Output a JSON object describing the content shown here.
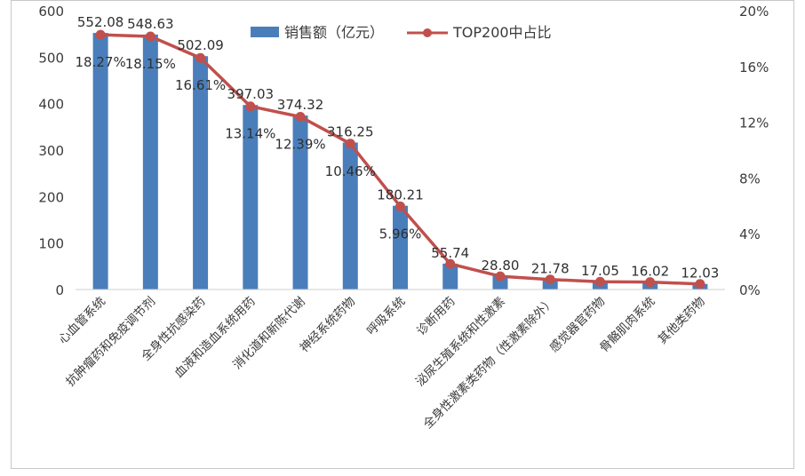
{
  "chart_data": {
    "type": "bar",
    "title": "",
    "xlabel": "",
    "ylabel": "",
    "ylim": [
      0,
      600
    ],
    "y2lim": [
      0,
      20
    ],
    "yticks": [
      "0",
      "100",
      "200",
      "300",
      "400",
      "500",
      "600"
    ],
    "y2ticks": [
      "0%",
      "4%",
      "8%",
      "12%",
      "16%",
      "20%"
    ],
    "grid": false,
    "legend_position": "top",
    "categories": [
      "心血管系统",
      "抗肿瘤药和免疫调节剂",
      "全身性抗感染药",
      "血液和造血系统用药",
      "消化道和新陈代谢",
      "神经系统药物",
      "呼吸系统",
      "诊断用药",
      "泌尿生殖系统和性激素",
      "全身性激素类药物（性激素除外）",
      "感觉器官药物",
      "骨骼肌肉系统",
      "其他类药物"
    ],
    "series": [
      {
        "name": "销售额（亿元）",
        "type": "bar",
        "axis": "left",
        "color": "#4a7ebb",
        "values": [
          552.08,
          548.63,
          502.09,
          397.03,
          374.32,
          316.25,
          180.21,
          55.74,
          28.8,
          21.78,
          17.05,
          16.02,
          12.03
        ],
        "labels": [
          "552.08",
          "548.63",
          "502.09",
          "397.03",
          "374.32",
          "316.25",
          "180.21",
          "55.74",
          "28.80",
          "21.78",
          "17.05",
          "16.02",
          "12.03"
        ]
      },
      {
        "name": "TOP200中占比",
        "type": "line",
        "axis": "right",
        "color": "#c0504d",
        "values": [
          18.27,
          18.15,
          16.61,
          13.14,
          12.39,
          10.46,
          5.96,
          1.84,
          0.95,
          0.72,
          0.56,
          0.53,
          0.4
        ],
        "labels": [
          "18.27%",
          "18.15%",
          "16.61%",
          "13.14%",
          "12.39%",
          "10.46%",
          "5.96%",
          "",
          "",
          "",
          "",
          "",
          ""
        ]
      }
    ]
  }
}
